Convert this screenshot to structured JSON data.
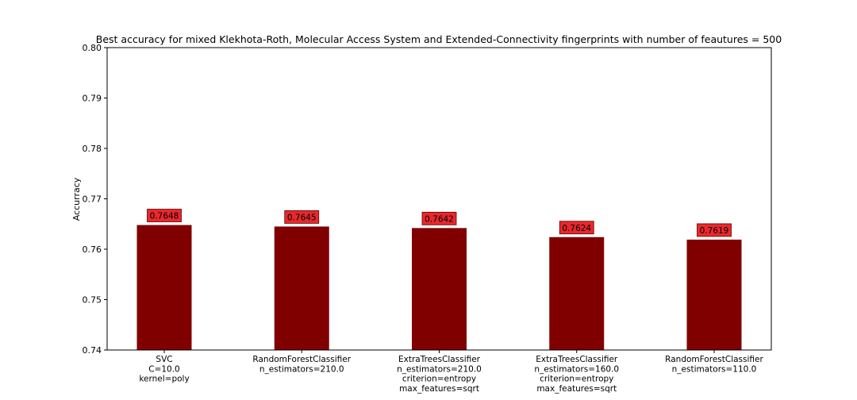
{
  "chart_data": {
    "type": "bar",
    "title": "Best accuracy for mixed Klekhota-Roth, Molecular Access System and Extended-Connectivity fingerprints with number of feautures = 500",
    "xlabel": "",
    "ylabel": "Accurracy",
    "ylim": [
      0.74,
      0.8
    ],
    "yticks": [
      "0.74",
      "0.75",
      "0.76",
      "0.77",
      "0.78",
      "0.79",
      "0.80"
    ],
    "categories": [
      [
        "SVC",
        "C=10.0",
        "kernel=poly"
      ],
      [
        "RandomForestClassifier",
        "n_estimators=210.0"
      ],
      [
        "ExtraTreesClassifier",
        "n_estimators=210.0",
        "criterion=entropy",
        "max_features=sqrt"
      ],
      [
        "ExtraTreesClassifier",
        "n_estimators=160.0",
        "criterion=entropy",
        "max_features=sqrt"
      ],
      [
        "RandomForestClassifier",
        "n_estimators=110.0"
      ]
    ],
    "values": [
      0.7648,
      0.7645,
      0.7642,
      0.7624,
      0.7619
    ],
    "data_labels": [
      "0.7648",
      "0.7645",
      "0.7642",
      "0.7624",
      "0.7619"
    ],
    "grid": false,
    "colors": {
      "bar": "#800000",
      "label_box": "#e8282d"
    }
  }
}
